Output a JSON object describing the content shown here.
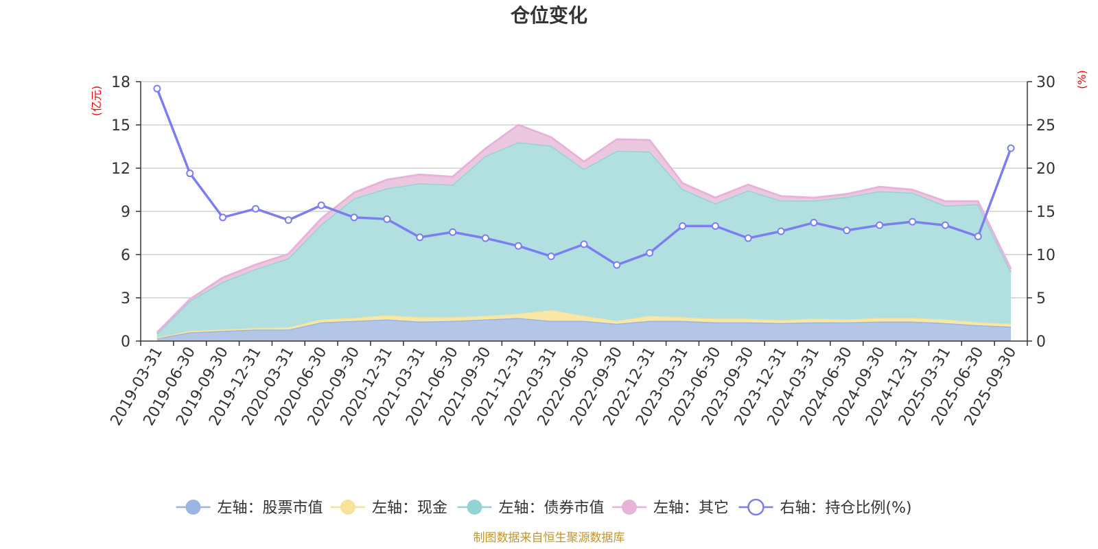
{
  "chart_data": {
    "type": "area",
    "title": "仓位变化",
    "left_axis_unit": "(亿元)",
    "right_axis_unit": "(%)",
    "left_ylim": [
      0,
      18
    ],
    "left_ticks": [
      "0",
      "3",
      "6",
      "9",
      "12",
      "15",
      "18"
    ],
    "right_ylim": [
      0,
      30
    ],
    "right_ticks": [
      "0",
      "5",
      "10",
      "15",
      "20",
      "25",
      "30"
    ],
    "categories": [
      "2019-03-31",
      "2019-06-30",
      "2019-09-30",
      "2019-12-31",
      "2020-03-31",
      "2020-06-30",
      "2020-09-30",
      "2020-12-31",
      "2021-03-31",
      "2021-06-30",
      "2021-09-30",
      "2021-12-31",
      "2022-03-31",
      "2022-06-30",
      "2022-09-30",
      "2022-12-31",
      "2023-03-31",
      "2023-06-30",
      "2023-09-30",
      "2023-12-31",
      "2024-03-31",
      "2024-06-30",
      "2024-09-30",
      "2024-12-31",
      "2025-03-31",
      "2025-06-30",
      "2025-09-30"
    ],
    "stacked_series": [
      {
        "name": "左轴：股票市值",
        "color": "#9bb5e0",
        "fill": "#b3c6e8",
        "values": [
          0.2,
          0.6,
          0.7,
          0.8,
          0.8,
          1.3,
          1.4,
          1.5,
          1.35,
          1.4,
          1.5,
          1.6,
          1.4,
          1.4,
          1.2,
          1.4,
          1.4,
          1.3,
          1.3,
          1.25,
          1.3,
          1.3,
          1.35,
          1.35,
          1.25,
          1.1,
          1.0
        ]
      },
      {
        "name": "左轴：现金",
        "color": "#f7e39b",
        "fill": "#f8e8a8",
        "values": [
          0.05,
          0.1,
          0.1,
          0.1,
          0.15,
          0.2,
          0.2,
          0.3,
          0.3,
          0.25,
          0.25,
          0.3,
          0.75,
          0.35,
          0.2,
          0.35,
          0.25,
          0.25,
          0.25,
          0.2,
          0.25,
          0.2,
          0.25,
          0.25,
          0.25,
          0.2,
          0.2
        ]
      },
      {
        "name": "左轴：债券市值",
        "color": "#94d3d4",
        "fill": "#b2dfe0",
        "values": [
          0.25,
          2.1,
          3.3,
          4.1,
          4.8,
          6.6,
          8.3,
          8.8,
          9.3,
          9.2,
          11.1,
          11.9,
          11.4,
          10.2,
          11.8,
          11.4,
          8.9,
          8.0,
          8.9,
          8.3,
          8.2,
          8.5,
          8.8,
          8.7,
          7.9,
          8.2,
          3.6
        ]
      },
      {
        "name": "左轴：其它",
        "color": "#e8b3d9",
        "fill": "#ecc8e0",
        "values": [
          0.1,
          0.1,
          0.3,
          0.3,
          0.3,
          0.4,
          0.4,
          0.6,
          0.6,
          0.55,
          0.5,
          1.2,
          0.6,
          0.5,
          0.8,
          0.8,
          0.4,
          0.4,
          0.4,
          0.3,
          0.2,
          0.2,
          0.3,
          0.2,
          0.3,
          0.2,
          0.2
        ]
      }
    ],
    "line_series": {
      "name": "右轴：持仓比例(%)",
      "color": "#7b7ef2",
      "axis": "right",
      "values": [
        29.2,
        19.4,
        14.3,
        15.3,
        14.0,
        15.7,
        14.3,
        14.1,
        12.0,
        12.6,
        11.9,
        11.0,
        9.8,
        11.2,
        8.8,
        10.2,
        13.3,
        13.3,
        11.9,
        12.7,
        13.7,
        12.8,
        13.4,
        13.8,
        13.4,
        12.1,
        22.3
      ]
    },
    "legend_position": "bottom",
    "grid": true
  },
  "footer": "制图数据来自恒生聚源数据库"
}
